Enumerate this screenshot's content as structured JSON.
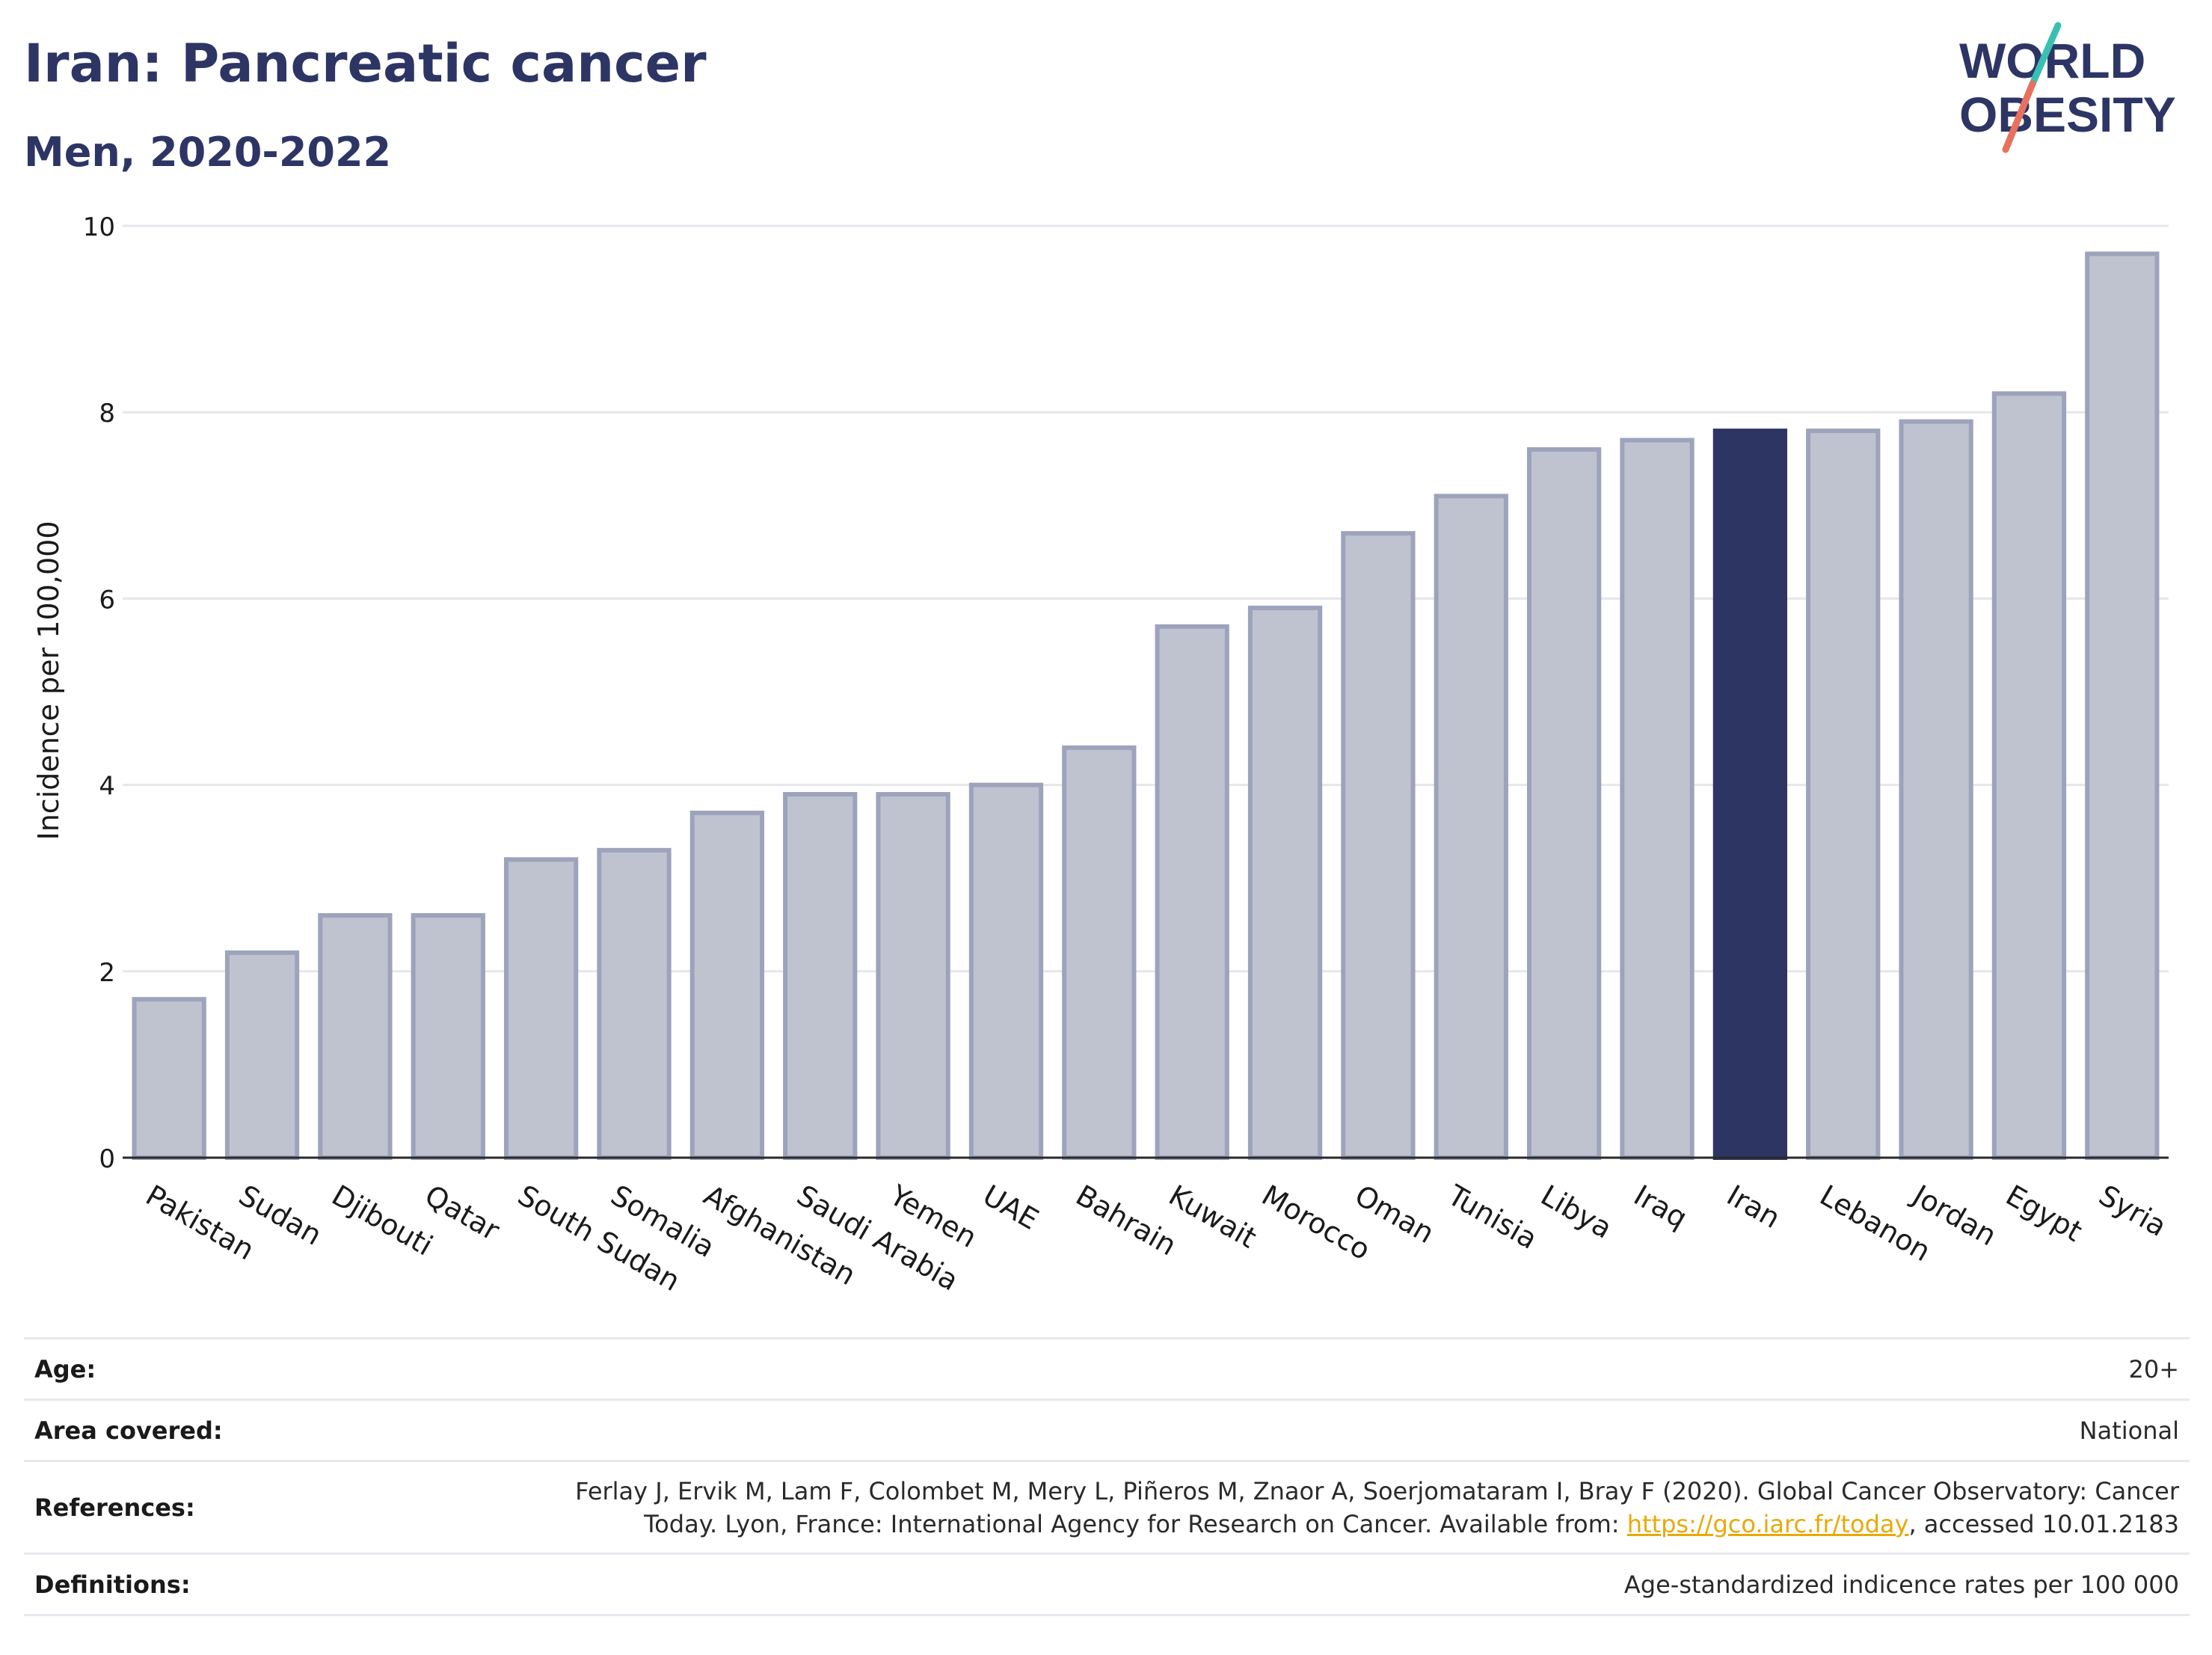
{
  "header": {
    "title": "Iran: Pancreatic cancer",
    "subtitle": "Men, 2020-2022"
  },
  "logo": {
    "line1": "WORLD",
    "line2": "OBESITY",
    "text_color": "#2d3565",
    "slash_top_color": "#3bbfb3",
    "slash_bottom_color": "#e8705e"
  },
  "chart_data": {
    "type": "bar",
    "title": "Iran: Pancreatic cancer",
    "subtitle": "Men, 2020-2022",
    "ylabel": "Incidence per 100,000",
    "xlabel": "",
    "ylim": [
      0,
      10
    ],
    "yticks": [
      0,
      2,
      4,
      6,
      8,
      10
    ],
    "grid": true,
    "highlight": "Iran",
    "colors": {
      "bar_fill": "#bfc3d0",
      "bar_stroke": "#9ea3bc",
      "highlight": "#2d3562"
    },
    "categories": [
      "Pakistan",
      "Sudan",
      "Djibouti",
      "Qatar",
      "South Sudan",
      "Somalia",
      "Afghanistan",
      "Saudi Arabia",
      "Yemen",
      "UAE",
      "Bahrain",
      "Kuwait",
      "Morocco",
      "Oman",
      "Tunisia",
      "Libya",
      "Iraq",
      "Iran",
      "Lebanon",
      "Jordan",
      "Egypt",
      "Syria"
    ],
    "values": [
      1.7,
      2.2,
      2.6,
      2.6,
      3.2,
      3.3,
      3.7,
      3.9,
      3.9,
      4.0,
      4.4,
      5.7,
      5.9,
      6.7,
      7.1,
      7.6,
      7.7,
      7.8,
      7.8,
      7.9,
      8.2,
      9.7
    ]
  },
  "footer": {
    "age_label": "Age:",
    "age_value": "20+",
    "area_label": "Area covered:",
    "area_value": "National",
    "refs_label": "References:",
    "refs_line1": "Ferlay J, Ervik M, Lam F, Colombet M, Mery L, Piñeros M, Znaor A, Soerjomataram I, Bray F (2020). Global Cancer Observatory: Cancer",
    "refs_line2_pre": "Today. Lyon, France: International Agency for Research on Cancer. Available from: ",
    "refs_link": "https://gco.iarc.fr/today",
    "refs_line2_post": ", accessed 10.01.2183",
    "defs_label": "Definitions:",
    "defs_value": "Age-standardized indicence rates per 100 000"
  }
}
